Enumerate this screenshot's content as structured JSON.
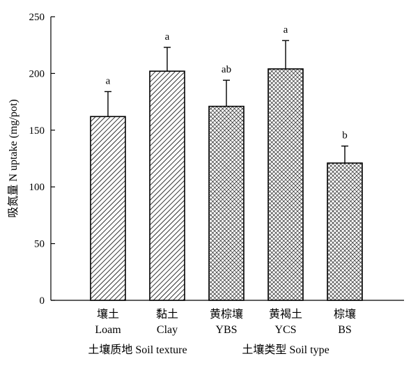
{
  "chart_data": {
    "type": "bar",
    "ylabel": "吸氮量 N uptake (mg/pot)",
    "ylim": [
      0,
      250
    ],
    "yticks": [
      0,
      50,
      100,
      150,
      200,
      250
    ],
    "grid": false,
    "categories": [
      {
        "cn": "壤土",
        "en": "Loam"
      },
      {
        "cn": "黏土",
        "en": "Clay"
      },
      {
        "cn": "黄棕壤",
        "en": "YBS"
      },
      {
        "cn": "黄褐土",
        "en": "YCS"
      },
      {
        "cn": "棕壤",
        "en": "BS"
      }
    ],
    "values": [
      162,
      202,
      171,
      204,
      121
    ],
    "errors": [
      22,
      21,
      23,
      25,
      15
    ],
    "significance": [
      "a",
      "a",
      "ab",
      "a",
      "b"
    ],
    "patterns": [
      "diagonal",
      "diagonal",
      "crosshatch",
      "crosshatch",
      "crosshatch"
    ],
    "group_labels": [
      {
        "text": "土壤质地 Soil texture",
        "categories": [
          0,
          1
        ]
      },
      {
        "text": "土壤类型 Soil type",
        "categories": [
          2,
          3,
          4
        ]
      }
    ]
  }
}
